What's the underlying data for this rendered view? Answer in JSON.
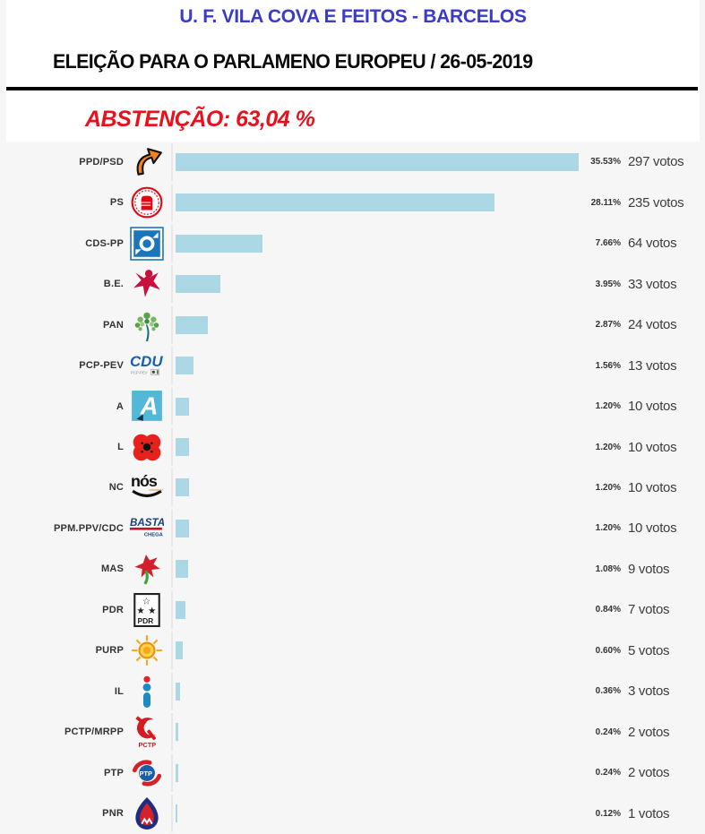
{
  "header": {
    "title": "U. F. VILA COVA E FEITOS - BARCELOS",
    "subtitle": "ELEIÇÃO PARA O PARLAMENO EUROPEU / 26-05-2019",
    "abstention": "ABSTENÇÃO: 63,04 %"
  },
  "colors": {
    "title_blue": "#3A3ACB",
    "abstention_red": "#E8111C",
    "bar_fill": "#ACD8E6",
    "page_bg": "#F6F6F6",
    "separator_gray": "#E8E8E8"
  },
  "chart_data": {
    "type": "bar",
    "orientation": "horizontal",
    "title": "ELEIÇÃO PARA O PARLAMENO EUROPEU / 26-05-2019",
    "unit": "votos",
    "grid": false,
    "legend": false,
    "xlim_percent": [
      0,
      40
    ],
    "categories": [
      "PPD/PSD",
      "PS",
      "CDS-PP",
      "B.E.",
      "PAN",
      "PCP-PEV",
      "A",
      "L",
      "NC",
      "PPM.PPV/CDC",
      "MAS",
      "PDR",
      "PURP",
      "IL",
      "PCTP/MRPP",
      "PTP",
      "PNR"
    ],
    "values_percent": [
      35.53,
      28.11,
      7.66,
      3.95,
      2.87,
      1.56,
      1.2,
      1.2,
      1.2,
      1.2,
      1.08,
      0.84,
      0.6,
      0.36,
      0.24,
      0.24,
      0.12
    ],
    "values_votes": [
      297,
      235,
      64,
      33,
      24,
      13,
      10,
      10,
      10,
      10,
      9,
      7,
      5,
      3,
      2,
      2,
      1
    ],
    "percent_labels": [
      "35.53%",
      "28.11%",
      "7.66%",
      "3.95%",
      "2.87%",
      "1.56%",
      "1.20%",
      "1.20%",
      "1.20%",
      "1.20%",
      "1.08%",
      "0.84%",
      "0.60%",
      "0.36%",
      "0.24%",
      "0.24%",
      "0.12%"
    ],
    "votes_labels": [
      "297 votos",
      "235 votos",
      "64 votos",
      "33 votos",
      "24 votos",
      "13 votos",
      "10 votos",
      "10 votos",
      "10 votos",
      "10 votos",
      "9 votos",
      "7 votos",
      "5 votos",
      "3 votos",
      "2 votos",
      "2 votos",
      "1 votos"
    ],
    "icons": [
      "psd-arrow-icon",
      "ps-fist-icon",
      "cds-pp-icon",
      "be-star-icon",
      "pan-tree-icon",
      "cdu-logo-icon",
      "alianca-logo-icon",
      "livre-poppy-icon",
      "nos-cidadaos-icon",
      "basta-chega-icon",
      "mas-carnation-icon",
      "pdr-logo-icon",
      "purp-sun-icon",
      "il-logo-icon",
      "pctp-mrpp-icon",
      "ptp-logo-icon",
      "pnr-flame-icon"
    ],
    "bar_color": "#ACD8E6"
  }
}
